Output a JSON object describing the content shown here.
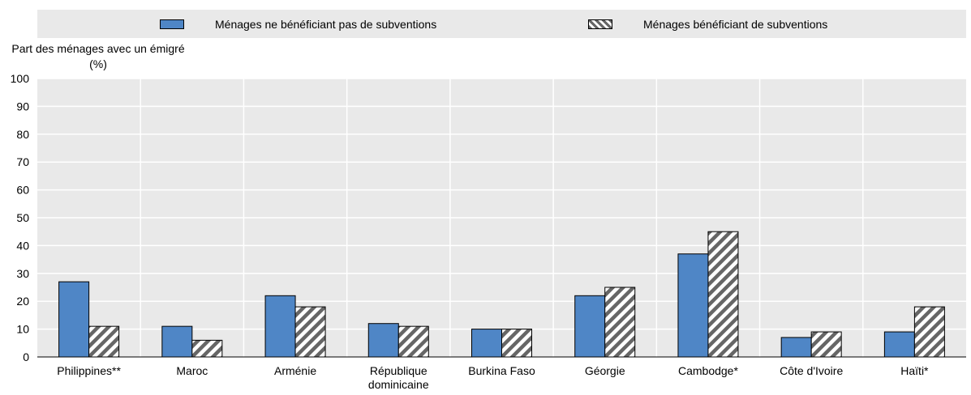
{
  "chart_data": {
    "type": "bar",
    "title": "",
    "xlabel": "",
    "ylabel": "Part des ménages avec un émigré (%)",
    "ylim": [
      0,
      100
    ],
    "yticks": [
      0,
      10,
      20,
      30,
      40,
      50,
      60,
      70,
      80,
      90,
      100
    ],
    "grid": true,
    "legend_position": "top",
    "categories": [
      "Philippines**",
      "Maroc",
      "Arménie",
      "République dominicaine",
      "Burkina Faso",
      "Géorgie",
      "Cambodge*",
      "Côte d'Ivoire",
      "Haïti*"
    ],
    "series": [
      {
        "name": "Ménages ne bénéficiant pas de subventions",
        "color": "#4f86c6",
        "pattern": "solid",
        "values": [
          27,
          11,
          22,
          12,
          10,
          22,
          37,
          7,
          9
        ]
      },
      {
        "name": "Ménages bénéficiant de subventions",
        "color": "#ffffff",
        "pattern": "diagonal-hatch",
        "values": [
          11,
          6,
          18,
          11,
          10,
          25,
          45,
          9,
          18
        ]
      }
    ]
  }
}
